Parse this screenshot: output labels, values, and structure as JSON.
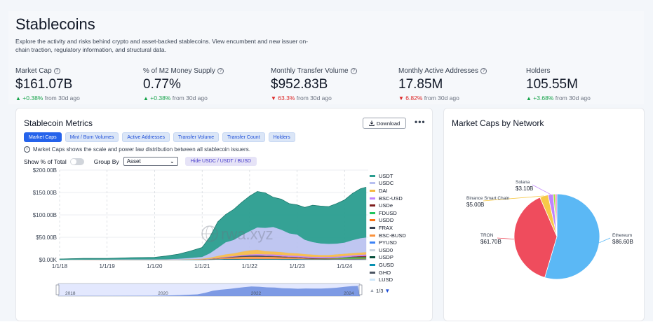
{
  "header": {
    "title": "Stablecoins",
    "subtitle": "Explore the activity and risks behind crypto and asset-backed stablecoins. View encumbent and new issuer on-chain traction, regulatory information, and structural data."
  },
  "stats": [
    {
      "label": "Market Cap",
      "value": "$161.07B",
      "change": "+0.38%",
      "direction": "up",
      "suffix": "from 30d ago"
    },
    {
      "label": "% of M2 Money Supply",
      "value": "0.77%",
      "change": "+0.38%",
      "direction": "up",
      "suffix": "from 30d ago"
    },
    {
      "label": "Monthly Transfer Volume",
      "value": "$952.83B",
      "change": "63.3%",
      "direction": "down",
      "suffix": "from 30d ago"
    },
    {
      "label": "Monthly Active Addresses",
      "value": "17.85M",
      "change": "6.82%",
      "direction": "down",
      "suffix": "from 30d ago"
    },
    {
      "label": "Holders",
      "value": "105.55M",
      "change": "+3.68%",
      "direction": "up",
      "suffix": "from 30d ago"
    }
  ],
  "metrics": {
    "title": "Stablecoin Metrics",
    "download_label": "Download",
    "more_label": "•••",
    "tabs": [
      "Market Caps",
      "Mint / Burn Volumes",
      "Active Addresses",
      "Transfer Volume",
      "Transfer Count",
      "Holders"
    ],
    "active_tab": 0,
    "info_text": "Market Caps shows the scale and power law distribution between all stablecoin issuers.",
    "show_percent_label": "Show % of Total",
    "group_by_label": "Group By",
    "group_by_value": "Asset",
    "hide_button_label": "Hide USDC / USDT / BUSD",
    "watermark": "rwa.xyz",
    "pager": "1/3"
  },
  "chart_data": [
    {
      "type": "area",
      "title": "",
      "xlabel": "",
      "ylabel": "",
      "y_ticks": [
        "$0.00K",
        "$50.00B",
        "$100.00B",
        "$150.00B",
        "$200.00B"
      ],
      "ylim": [
        0,
        200
      ],
      "x_ticks": [
        "1/1/18",
        "1/1/19",
        "1/1/20",
        "1/1/21",
        "1/1/22",
        "1/1/23",
        "1/1/24"
      ],
      "x": [
        "2018-01-01",
        "2018-07-01",
        "2019-01-01",
        "2019-07-01",
        "2020-01-01",
        "2020-04-01",
        "2020-07-01",
        "2020-10-01",
        "2021-01-01",
        "2021-03-01",
        "2021-05-01",
        "2021-07-01",
        "2021-09-01",
        "2021-11-01",
        "2022-01-01",
        "2022-03-01",
        "2022-05-01",
        "2022-07-01",
        "2022-09-01",
        "2022-11-01",
        "2023-01-01",
        "2023-03-01",
        "2023-05-01",
        "2023-07-01",
        "2023-09-01",
        "2023-11-01",
        "2024-01-01",
        "2024-03-01",
        "2024-05-01",
        "2024-06-15"
      ],
      "series": [
        {
          "name": "USDT",
          "color": "#2a9d8f",
          "values": [
            1.5,
            2.5,
            2.2,
            3.5,
            4.3,
            7.0,
            10.0,
            15.0,
            21.0,
            36.0,
            58.0,
            62.0,
            68.0,
            73.0,
            78.0,
            80.0,
            78.0,
            66.0,
            68.0,
            66.0,
            66.0,
            72.0,
            82.0,
            83.0,
            83.0,
            89.0,
            95.0,
            104.0,
            110.0,
            112.0
          ]
        },
        {
          "name": "USDC",
          "color": "#b8c0f0",
          "values": [
            0.0,
            0.2,
            0.3,
            0.5,
            0.5,
            0.9,
            1.8,
            3.0,
            4.0,
            10.0,
            18.0,
            27.0,
            30.0,
            37.0,
            43.0,
            50.0,
            52.0,
            55.0,
            50.0,
            44.0,
            42.0,
            32.0,
            28.0,
            26.0,
            25.0,
            24.0,
            25.0,
            29.0,
            32.0,
            33.0
          ]
        },
        {
          "name": "DAI",
          "color": "#f5b840",
          "values": [
            0.0,
            0.05,
            0.1,
            0.1,
            0.1,
            0.1,
            0.2,
            0.7,
            1.5,
            2.5,
            4.5,
            5.5,
            6.0,
            7.5,
            9.0,
            9.5,
            7.0,
            6.5,
            6.3,
            5.5,
            5.2,
            5.0,
            5.0,
            4.2,
            4.0,
            5.0,
            4.8,
            4.6,
            4.8,
            5.0
          ]
        },
        {
          "name": "BSC-USD",
          "color": "#c084fc",
          "values": [
            0.0,
            0.0,
            0.0,
            0.0,
            0.0,
            0.0,
            0.0,
            0.0,
            0.2,
            0.5,
            0.8,
            1.2,
            1.5,
            2.0,
            2.5,
            3.0,
            3.2,
            3.3,
            3.2,
            3.0,
            3.0,
            2.9,
            2.8,
            2.8,
            2.8,
            2.9,
            3.0,
            3.1,
            3.2,
            3.3
          ]
        },
        {
          "name": "USDe",
          "color": "#7f1d1d",
          "values": [
            0,
            0,
            0,
            0,
            0,
            0,
            0,
            0,
            0,
            0,
            0,
            0,
            0,
            0,
            0,
            0,
            0,
            0,
            0,
            0,
            0,
            0,
            0,
            0,
            0,
            0,
            0.3,
            1.5,
            2.5,
            3.0
          ]
        },
        {
          "name": "FDUSD",
          "color": "#22c55e",
          "values": [
            0,
            0,
            0,
            0,
            0,
            0,
            0,
            0,
            0,
            0,
            0,
            0,
            0,
            0,
            0,
            0,
            0,
            0,
            0,
            0,
            0,
            0,
            0,
            0.3,
            0.8,
            1.5,
            2.8,
            3.2,
            3.0,
            2.8
          ]
        },
        {
          "name": "USDD",
          "color": "#f97316",
          "values": [
            0,
            0,
            0,
            0,
            0,
            0,
            0,
            0,
            0,
            0,
            0,
            0,
            0,
            0,
            0,
            0,
            0.5,
            0.7,
            0.7,
            0.7,
            0.7,
            0.7,
            0.7,
            0.7,
            0.7,
            0.7,
            0.7,
            0.7,
            0.7,
            0.7
          ]
        },
        {
          "name": "FRAX",
          "color": "#374151",
          "values": [
            0,
            0,
            0,
            0,
            0,
            0,
            0,
            0,
            0.1,
            0.2,
            0.3,
            0.8,
            1.3,
            2.0,
            2.5,
            2.8,
            1.8,
            1.4,
            1.4,
            1.1,
            1.1,
            1.0,
            1.0,
            0.9,
            0.7,
            0.6,
            0.6,
            0.6,
            0.6,
            0.6
          ]
        },
        {
          "name": "BSC-BUSD",
          "color": "#fb923c",
          "values": [
            0,
            0,
            0,
            0,
            0,
            0,
            0,
            0,
            0.1,
            0.5,
            1.5,
            2.5,
            3.5,
            4.5,
            5.0,
            5.0,
            4.8,
            4.5,
            3.8,
            3.0,
            2.5,
            1.5,
            0.8,
            0.5,
            0.3,
            0.2,
            0.1,
            0.1,
            0.1,
            0.1
          ]
        },
        {
          "name": "PYUSD",
          "color": "#3b82f6",
          "values": [
            0,
            0,
            0,
            0,
            0,
            0,
            0,
            0,
            0,
            0,
            0,
            0,
            0,
            0,
            0,
            0,
            0,
            0,
            0,
            0,
            0,
            0,
            0,
            0,
            0.1,
            0.2,
            0.3,
            0.3,
            0.4,
            0.5
          ]
        },
        {
          "name": "USD0",
          "color": "#cbd5e1",
          "values": [
            0,
            0,
            0,
            0,
            0,
            0,
            0,
            0,
            0,
            0,
            0,
            0,
            0,
            0,
            0,
            0,
            0,
            0,
            0,
            0,
            0,
            0,
            0,
            0,
            0,
            0,
            0,
            0,
            0.1,
            0.2
          ]
        },
        {
          "name": "USDP",
          "color": "#064e3b",
          "values": [
            0,
            0,
            0.1,
            0.2,
            0.2,
            0.2,
            0.2,
            0.3,
            0.4,
            0.5,
            0.7,
            0.9,
            1.0,
            1.0,
            1.0,
            1.0,
            1.0,
            0.9,
            0.9,
            0.9,
            0.9,
            0.8,
            0.6,
            0.5,
            0.5,
            0.4,
            0.3,
            0.3,
            0.3,
            0.3
          ]
        },
        {
          "name": "GUSD",
          "color": "#0891b2",
          "values": [
            0,
            0.05,
            0.1,
            0.1,
            0.1,
            0.1,
            0.1,
            0.1,
            0.1,
            0.2,
            0.3,
            0.4,
            0.4,
            0.4,
            0.4,
            0.4,
            0.5,
            0.6,
            0.6,
            0.6,
            0.6,
            0.5,
            0.4,
            0.4,
            0.3,
            0.2,
            0.2,
            0.1,
            0.1,
            0.1
          ]
        },
        {
          "name": "GHO",
          "color": "#4b5563",
          "values": [
            0,
            0,
            0,
            0,
            0,
            0,
            0,
            0,
            0,
            0,
            0,
            0,
            0,
            0,
            0,
            0,
            0,
            0,
            0,
            0,
            0,
            0,
            0,
            0.03,
            0.05,
            0.1,
            0.1,
            0.1,
            0.1,
            0.1
          ]
        },
        {
          "name": "LUSD",
          "color": "#cfe8fb",
          "values": [
            0,
            0,
            0,
            0,
            0,
            0,
            0,
            0,
            0,
            0.2,
            0.5,
            0.7,
            0.6,
            0.5,
            0.5,
            0.5,
            0.4,
            0.4,
            0.3,
            0.3,
            0.3,
            0.3,
            0.3,
            0.3,
            0.3,
            0.3,
            0.2,
            0.2,
            0.2,
            0.2
          ]
        }
      ],
      "navigator_ticks": [
        "2018",
        "2020",
        "2022",
        "2024"
      ],
      "legend_position": "right"
    },
    {
      "type": "pie",
      "title": "Market Caps by Network",
      "slices": [
        {
          "label": "Ethereum",
          "display": "$86.60B",
          "value": 86.6,
          "color": "#5bb8f5"
        },
        {
          "label": "TRON",
          "display": "$61.70B",
          "value": 61.7,
          "color": "#ef4c5d"
        },
        {
          "label": "Binance Smart Chain",
          "display": "$5.00B",
          "value": 5.0,
          "color": "#f7c948"
        },
        {
          "label": "Solana",
          "display": "$3.10B",
          "value": 3.1,
          "color": "#c084fc"
        },
        {
          "label": "",
          "display": "",
          "value": 1.2,
          "color": "#a3e635"
        },
        {
          "label": "",
          "display": "",
          "value": 1.0,
          "color": "#f472b6"
        }
      ]
    }
  ]
}
